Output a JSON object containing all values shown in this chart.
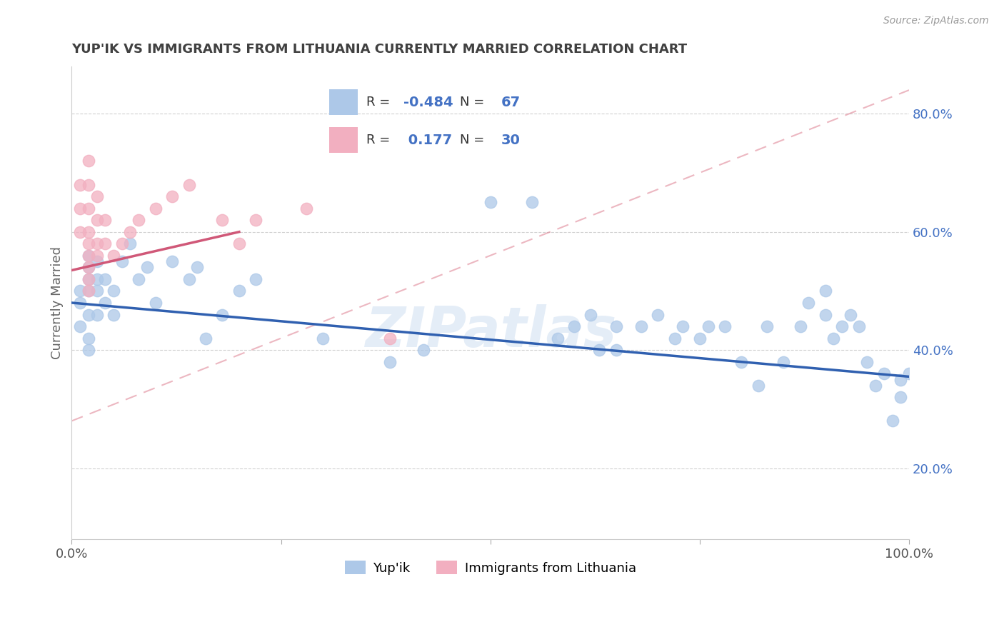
{
  "title": "YUP'IK VS IMMIGRANTS FROM LITHUANIA CURRENTLY MARRIED CORRELATION CHART",
  "source_text": "Source: ZipAtlas.com",
  "ylabel": "Currently Married",
  "watermark": "ZIPatlas",
  "xlim": [
    0.0,
    1.0
  ],
  "ylim": [
    0.08,
    0.88
  ],
  "yticks": [
    0.2,
    0.4,
    0.6,
    0.8
  ],
  "xticks": [
    0.0,
    0.25,
    0.5,
    0.75,
    1.0
  ],
  "legend_r1": "-0.484",
  "legend_n1": "67",
  "legend_r2": "0.177",
  "legend_n2": "30",
  "blue_color": "#adc8e8",
  "pink_color": "#f2afc0",
  "blue_line_color": "#3060b0",
  "pink_line_color": "#d05878",
  "pink_dashed_color": "#e08898",
  "title_color": "#404040",
  "label_color": "#4472c4",
  "series1_x": [
    0.01,
    0.01,
    0.01,
    0.02,
    0.02,
    0.02,
    0.02,
    0.02,
    0.02,
    0.02,
    0.03,
    0.03,
    0.03,
    0.03,
    0.04,
    0.04,
    0.05,
    0.05,
    0.06,
    0.07,
    0.08,
    0.09,
    0.1,
    0.12,
    0.14,
    0.15,
    0.16,
    0.18,
    0.2,
    0.22,
    0.3,
    0.38,
    0.42,
    0.5,
    0.55,
    0.58,
    0.6,
    0.62,
    0.63,
    0.65,
    0.65,
    0.68,
    0.7,
    0.72,
    0.73,
    0.75,
    0.76,
    0.78,
    0.8,
    0.82,
    0.83,
    0.85,
    0.87,
    0.88,
    0.9,
    0.9,
    0.91,
    0.92,
    0.93,
    0.94,
    0.95,
    0.96,
    0.97,
    0.98,
    0.99,
    0.99,
    1.0
  ],
  "series1_y": [
    0.5,
    0.48,
    0.44,
    0.56,
    0.54,
    0.52,
    0.5,
    0.46,
    0.42,
    0.4,
    0.55,
    0.52,
    0.5,
    0.46,
    0.52,
    0.48,
    0.5,
    0.46,
    0.55,
    0.58,
    0.52,
    0.54,
    0.48,
    0.55,
    0.52,
    0.54,
    0.42,
    0.46,
    0.5,
    0.52,
    0.42,
    0.38,
    0.4,
    0.65,
    0.65,
    0.42,
    0.44,
    0.46,
    0.4,
    0.44,
    0.4,
    0.44,
    0.46,
    0.42,
    0.44,
    0.42,
    0.44,
    0.44,
    0.38,
    0.34,
    0.44,
    0.38,
    0.44,
    0.48,
    0.5,
    0.46,
    0.42,
    0.44,
    0.46,
    0.44,
    0.38,
    0.34,
    0.36,
    0.28,
    0.35,
    0.32,
    0.36
  ],
  "series2_x": [
    0.01,
    0.01,
    0.01,
    0.02,
    0.02,
    0.02,
    0.02,
    0.02,
    0.02,
    0.02,
    0.02,
    0.02,
    0.03,
    0.03,
    0.03,
    0.03,
    0.04,
    0.04,
    0.05,
    0.06,
    0.07,
    0.08,
    0.1,
    0.12,
    0.14,
    0.18,
    0.2,
    0.22,
    0.28,
    0.38
  ],
  "series2_y": [
    0.68,
    0.64,
    0.6,
    0.72,
    0.68,
    0.64,
    0.6,
    0.58,
    0.56,
    0.54,
    0.52,
    0.5,
    0.66,
    0.62,
    0.58,
    0.56,
    0.62,
    0.58,
    0.56,
    0.58,
    0.6,
    0.62,
    0.64,
    0.66,
    0.68,
    0.62,
    0.58,
    0.62,
    0.64,
    0.42
  ],
  "blue_trend": [
    0.0,
    1.0,
    0.48,
    0.355
  ],
  "pink_solid_trend": [
    0.0,
    0.2,
    0.535,
    0.6
  ],
  "pink_dashed_trend": [
    0.0,
    1.0,
    0.28,
    0.84
  ]
}
